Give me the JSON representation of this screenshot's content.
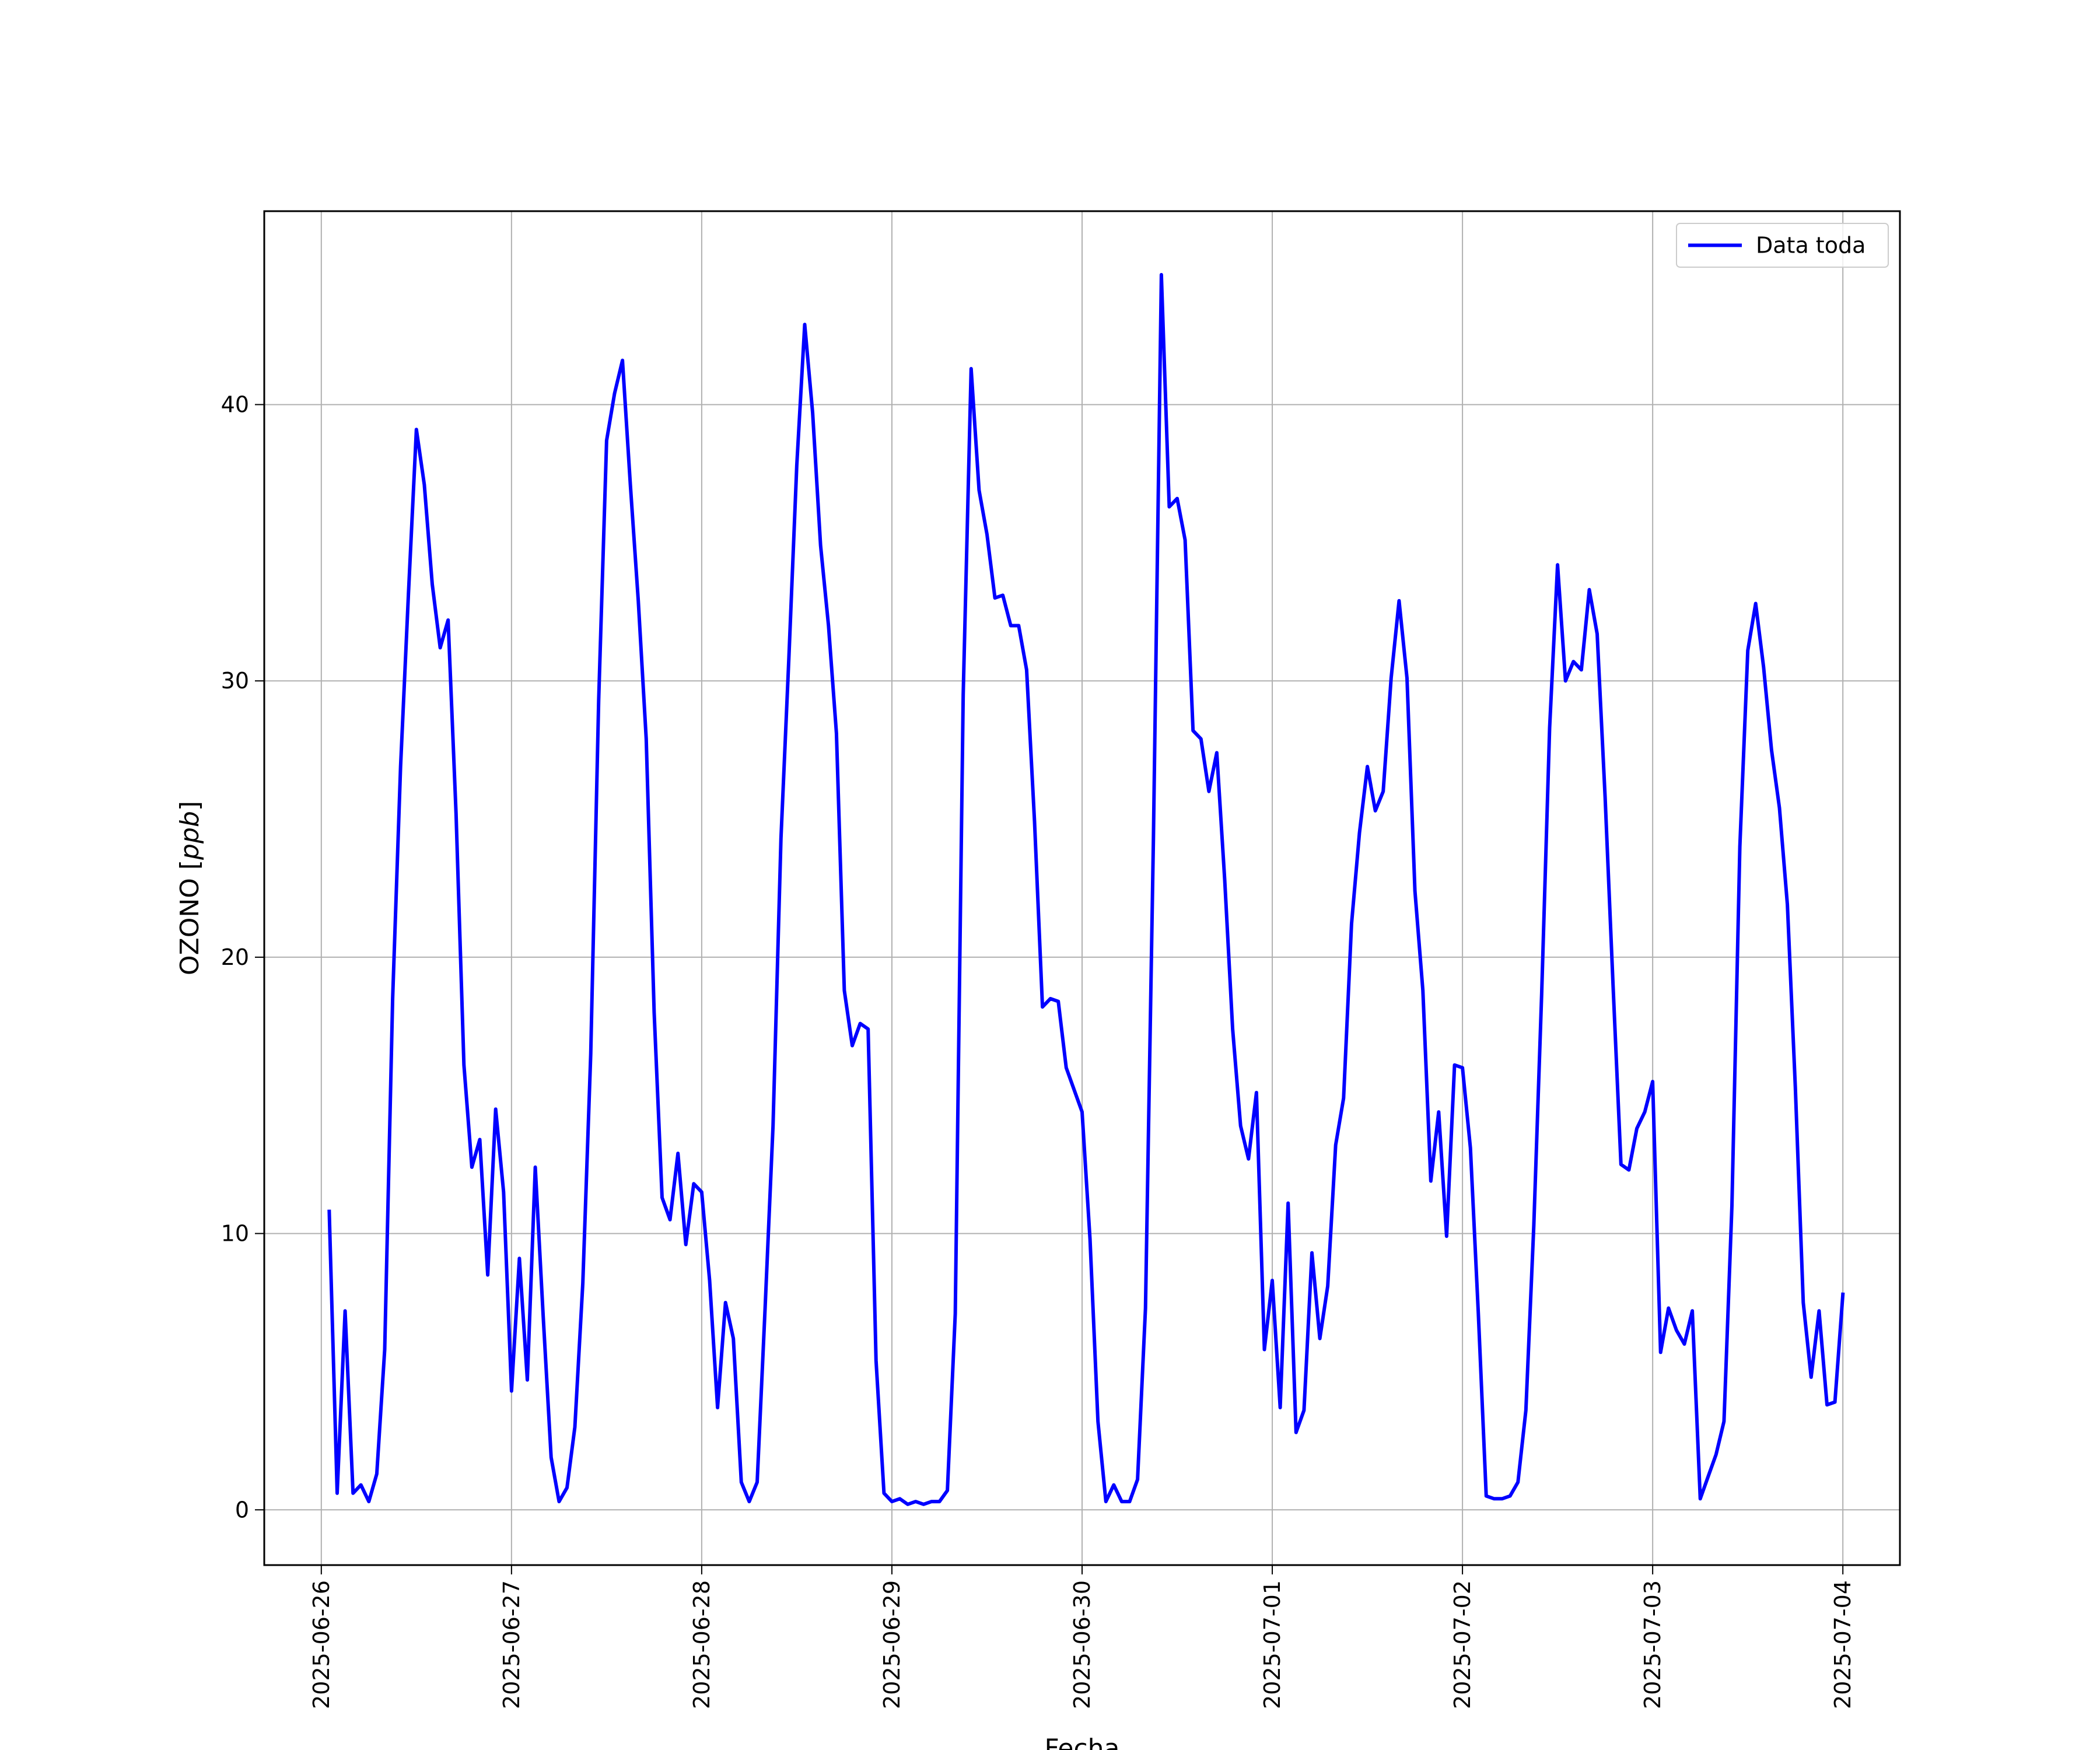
{
  "chart_data": {
    "type": "line",
    "title": "",
    "xlabel": "Fecha",
    "ylabel": "OZONO [ppb]",
    "ylabel_main": "OZONO [",
    "ylabel_unit": "ppb",
    "ylabel_close": "]",
    "xlim": [
      "2025-06-25T16:48",
      "2025-07-04T07:12"
    ],
    "ylim": [
      -2,
      47
    ],
    "grid": true,
    "legend_position": "top-right",
    "x_ticks": [
      "2025-06-26",
      "2025-06-27",
      "2025-06-28",
      "2025-06-29",
      "2025-06-30",
      "2025-07-01",
      "2025-07-02",
      "2025-07-03",
      "2025-07-04"
    ],
    "y_ticks": [
      0,
      10,
      20,
      30,
      40
    ],
    "colors": {
      "series": "#0000ff",
      "grid": "#b0b0b0",
      "frame": "#000000"
    },
    "series": [
      {
        "name": "Data toda",
        "x_start": "2025-06-26T01:00",
        "x_step_hours": 1,
        "values": [
          10.8,
          0.6,
          7.2,
          0.6,
          0.9,
          0.3,
          1.3,
          5.8,
          18.5,
          26.9,
          33.2,
          39.1,
          37.1,
          33.5,
          31.2,
          32.2,
          25.2,
          16.1,
          12.4,
          13.4,
          8.5,
          14.5,
          11.5,
          4.3,
          9.1,
          4.7,
          12.4,
          7.0,
          1.9,
          0.3,
          0.8,
          3.0,
          8.2,
          16.5,
          29.3,
          38.7,
          40.4,
          41.6,
          37.1,
          32.9,
          27.9,
          18.0,
          11.3,
          10.5,
          12.9,
          9.6,
          11.8,
          11.5,
          8.3,
          3.7,
          7.5,
          6.2,
          1.0,
          0.3,
          1.0,
          7.3,
          13.9,
          24.3,
          30.8,
          37.8,
          42.9,
          39.7,
          34.9,
          32.0,
          28.1,
          18.8,
          16.8,
          17.6,
          17.4,
          5.4,
          0.6,
          0.3,
          0.4,
          0.2,
          0.3,
          0.2,
          0.3,
          0.3,
          0.7,
          7.1,
          29.5,
          41.3,
          36.9,
          35.3,
          33.0,
          33.1,
          32.0,
          32.0,
          30.4,
          24.9,
          18.2,
          18.5,
          18.4,
          16.0,
          15.2,
          14.4,
          9.8,
          3.2,
          0.3,
          0.9,
          0.3,
          0.3,
          1.1,
          7.3,
          24.3,
          44.7,
          36.3,
          36.6,
          35.1,
          28.2,
          27.9,
          26.0,
          27.4,
          22.8,
          17.4,
          13.9,
          12.7,
          15.1,
          5.8,
          8.3,
          3.7,
          11.1,
          2.8,
          3.6,
          9.3,
          6.2,
          8.1,
          13.2,
          14.9,
          21.2,
          24.5,
          26.9,
          25.3,
          26.0,
          30.1,
          32.9,
          30.1,
          22.4,
          18.8,
          11.9,
          14.4,
          9.9,
          16.1,
          16.0,
          13.1,
          7.1,
          0.5,
          0.4,
          0.4,
          0.5,
          1.0,
          3.6,
          10.3,
          18.7,
          28.3,
          34.2,
          30.0,
          30.7,
          30.4,
          33.3,
          31.7,
          25.8,
          19.0,
          12.5,
          12.3,
          13.8,
          14.4,
          15.5,
          5.7,
          7.3,
          6.5,
          6.0,
          7.2,
          0.4,
          1.2,
          2.0,
          3.2,
          11.0,
          24.0,
          31.1,
          32.8,
          30.5,
          27.5,
          25.4,
          21.9,
          15.3,
          7.5,
          4.8,
          7.2,
          3.8,
          3.9,
          7.8
        ]
      }
    ]
  }
}
